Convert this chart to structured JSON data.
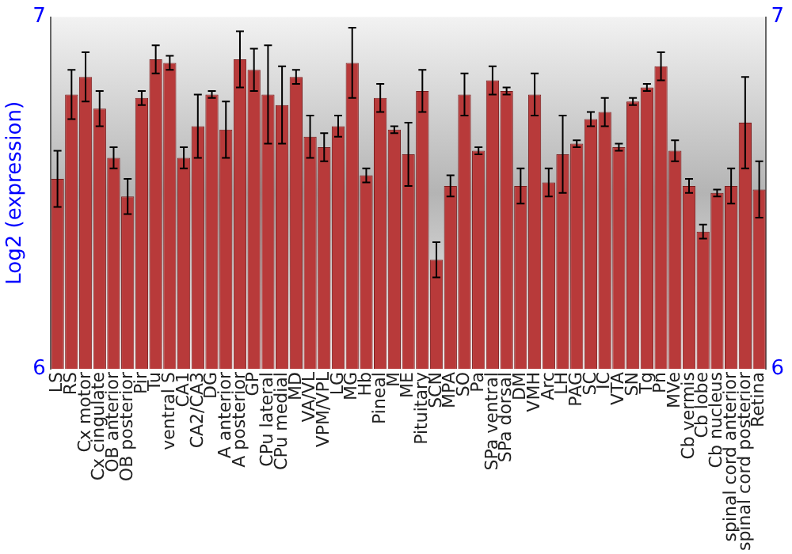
{
  "chart_data": {
    "type": "bar",
    "ylabel": "Log2 (expression)",
    "categories": [
      "LS",
      "RS",
      "Cx motor",
      "Cx cingulate",
      "OB anterior",
      "OB posterior",
      "Pir",
      "Tu",
      "ventral S",
      "CA1",
      "CA2/CA3",
      "DG",
      "A anterior",
      "A posterior",
      "GP",
      "CPu lateral",
      "CPu medial",
      "MD",
      "VA/VL",
      "VPM/VPL",
      "LG",
      "MG",
      "Hb",
      "Pineal",
      "M",
      "ME",
      "Pituitary",
      "SCN",
      "MPA",
      "SO",
      "Pa",
      "SPa ventral",
      "SPa dorsal",
      "DM",
      "VMH",
      "Arc",
      "LH",
      "PAG",
      "SC",
      "IC",
      "VTA",
      "SN",
      "Tg",
      "Pn",
      "MVe",
      "Cb vermis",
      "Cb lobe",
      "Cb nucleus",
      "spinal cord anterior",
      "spinal cord posterior",
      "Retina"
    ],
    "values": [
      6.54,
      6.78,
      6.83,
      6.74,
      6.6,
      6.49,
      6.77,
      6.88,
      6.87,
      6.6,
      6.69,
      6.78,
      6.68,
      6.88,
      6.85,
      6.78,
      6.75,
      6.83,
      6.66,
      6.63,
      6.69,
      6.87,
      6.55,
      6.77,
      6.68,
      6.61,
      6.79,
      6.31,
      6.52,
      6.78,
      6.62,
      6.82,
      6.79,
      6.52,
      6.78,
      6.53,
      6.61,
      6.64,
      6.71,
      6.73,
      6.63,
      6.76,
      6.8,
      6.86,
      6.62,
      6.52,
      6.39,
      6.5,
      6.52,
      6.7,
      6.51
    ],
    "errors": [
      0.08,
      0.07,
      0.07,
      0.05,
      0.03,
      0.05,
      0.02,
      0.04,
      0.02,
      0.03,
      0.09,
      0.01,
      0.08,
      0.08,
      0.06,
      0.14,
      0.11,
      0.02,
      0.06,
      0.04,
      0.03,
      0.1,
      0.02,
      0.04,
      0.01,
      0.09,
      0.06,
      0.05,
      0.03,
      0.06,
      0.01,
      0.04,
      0.01,
      0.05,
      0.06,
      0.04,
      0.11,
      0.01,
      0.02,
      0.04,
      0.01,
      0.01,
      0.01,
      0.04,
      0.03,
      0.02,
      0.02,
      0.01,
      0.05,
      0.13,
      0.08
    ],
    "color": "#b83a3a",
    "ylim": [
      6,
      7
    ],
    "yticks": [
      6,
      7
    ],
    "y2lim": [
      6,
      7
    ],
    "y2ticks": [
      6,
      7
    ],
    "grid": false,
    "legend": false
  }
}
